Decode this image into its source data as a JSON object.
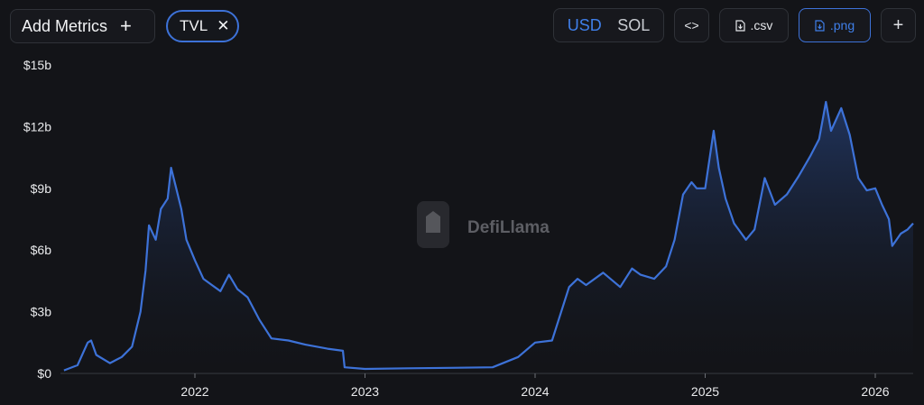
{
  "toolbar": {
    "add_metrics_label": "Add Metrics",
    "metric_pill_label": "TVL",
    "currency_options": [
      "USD",
      "SOL"
    ],
    "currency_selected": "USD",
    "embed_label": "<>",
    "csv_label": ".csv",
    "png_label": ".png",
    "add_label": "+"
  },
  "watermark": "DefiLlama",
  "colors": {
    "background": "#131418",
    "line": "#3d72d8",
    "accent": "#3f7fe9"
  },
  "chart_data": {
    "type": "area",
    "title": "",
    "xlabel": "",
    "ylabel": "",
    "x_ticks": [
      "2022",
      "2023",
      "2024",
      "2025",
      "2026"
    ],
    "y_ticks": [
      "$0",
      "$3b",
      "$6b",
      "$9b",
      "$12b",
      "$15b"
    ],
    "ylim": [
      0,
      15
    ],
    "xlim": [
      2021.23,
      2026.23
    ],
    "grid": false,
    "series": [
      {
        "values_unit": "billion USD",
        "points": [
          [
            2021.23,
            0.15
          ],
          [
            2021.31,
            0.4
          ],
          [
            2021.37,
            1.5
          ],
          [
            2021.39,
            1.6
          ],
          [
            2021.42,
            0.9
          ],
          [
            2021.5,
            0.5
          ],
          [
            2021.57,
            0.8
          ],
          [
            2021.63,
            1.3
          ],
          [
            2021.68,
            3.0
          ],
          [
            2021.71,
            5.0
          ],
          [
            2021.73,
            7.2
          ],
          [
            2021.77,
            6.5
          ],
          [
            2021.8,
            8.0
          ],
          [
            2021.84,
            8.5
          ],
          [
            2021.86,
            10.0
          ],
          [
            2021.89,
            9.0
          ],
          [
            2021.92,
            8.0
          ],
          [
            2021.95,
            6.5
          ],
          [
            2022.0,
            5.5
          ],
          [
            2022.05,
            4.6
          ],
          [
            2022.1,
            4.3
          ],
          [
            2022.15,
            4.0
          ],
          [
            2022.2,
            4.8
          ],
          [
            2022.25,
            4.1
          ],
          [
            2022.31,
            3.7
          ],
          [
            2022.38,
            2.6
          ],
          [
            2022.45,
            1.7
          ],
          [
            2022.55,
            1.6
          ],
          [
            2022.65,
            1.4
          ],
          [
            2022.78,
            1.2
          ],
          [
            2022.87,
            1.1
          ],
          [
            2022.88,
            0.3
          ],
          [
            2023.0,
            0.22
          ],
          [
            2023.25,
            0.25
          ],
          [
            2023.5,
            0.27
          ],
          [
            2023.75,
            0.3
          ],
          [
            2023.9,
            0.8
          ],
          [
            2024.0,
            1.5
          ],
          [
            2024.1,
            1.6
          ],
          [
            2024.2,
            4.2
          ],
          [
            2024.25,
            4.6
          ],
          [
            2024.3,
            4.3
          ],
          [
            2024.4,
            4.9
          ],
          [
            2024.5,
            4.2
          ],
          [
            2024.57,
            5.1
          ],
          [
            2024.62,
            4.8
          ],
          [
            2024.7,
            4.6
          ],
          [
            2024.77,
            5.2
          ],
          [
            2024.82,
            6.5
          ],
          [
            2024.87,
            8.7
          ],
          [
            2024.92,
            9.3
          ],
          [
            2024.95,
            9.0
          ],
          [
            2025.0,
            9.0
          ],
          [
            2025.05,
            11.8
          ],
          [
            2025.08,
            10.0
          ],
          [
            2025.12,
            8.5
          ],
          [
            2025.17,
            7.3
          ],
          [
            2025.24,
            6.5
          ],
          [
            2025.29,
            7.0
          ],
          [
            2025.35,
            9.5
          ],
          [
            2025.41,
            8.2
          ],
          [
            2025.48,
            8.7
          ],
          [
            2025.55,
            9.6
          ],
          [
            2025.62,
            10.6
          ],
          [
            2025.67,
            11.4
          ],
          [
            2025.71,
            13.2
          ],
          [
            2025.74,
            11.8
          ],
          [
            2025.8,
            12.9
          ],
          [
            2025.85,
            11.6
          ],
          [
            2025.9,
            9.5
          ],
          [
            2025.95,
            8.9
          ],
          [
            2026.0,
            9.0
          ],
          [
            2026.04,
            8.2
          ],
          [
            2026.08,
            7.5
          ],
          [
            2026.1,
            6.2
          ],
          [
            2026.15,
            6.8
          ],
          [
            2026.19,
            7.0
          ],
          [
            2026.23,
            7.3
          ]
        ]
      }
    ]
  }
}
